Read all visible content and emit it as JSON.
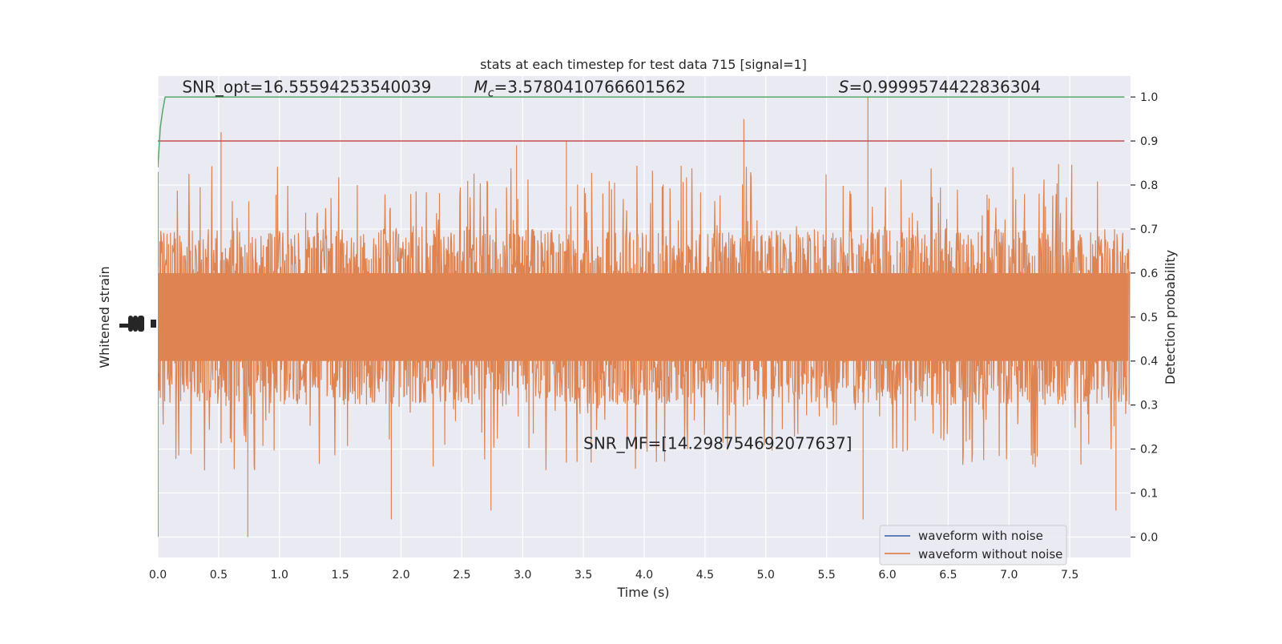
{
  "chart_data": {
    "type": "line",
    "title": "stats at each timestep for test data 715 [signal=1]",
    "xlabel": "Time (s)",
    "ylabel_left": "Whitened strain",
    "ylabel_right": "Detection probability",
    "xlim": [
      0.0,
      8.0
    ],
    "ylim_right": [
      -0.05,
      1.05
    ],
    "x_ticks": [
      "0.0",
      "0.5",
      "1.0",
      "1.5",
      "2.0",
      "2.5",
      "3.0",
      "3.5",
      "4.0",
      "4.5",
      "5.0",
      "5.5",
      "6.0",
      "6.5",
      "7.0",
      "7.5"
    ],
    "y_ticks_right": [
      "0.0",
      "0.1",
      "0.2",
      "0.3",
      "0.4",
      "0.5",
      "0.6",
      "0.7",
      "0.8",
      "0.9",
      "1.0"
    ],
    "grid": true,
    "legend_position": "lower-right",
    "series": [
      {
        "name": "waveform with noise",
        "color": "#4c72b0",
        "description": "blue trace, fully hidden under the orange trace except a faint sliver near t=0"
      },
      {
        "name": "waveform without noise",
        "color": "#dd8452",
        "band": {
          "core_low": 0.3,
          "core_high": 0.7,
          "peak_max": 1.0,
          "trough_min": 0.0
        },
        "notable_peaks": [
          {
            "x": 0.52,
            "y": 0.92
          },
          {
            "x": 4.82,
            "y": 0.95
          },
          {
            "x": 5.84,
            "y": 1.0
          },
          {
            "x": 3.36,
            "y": 0.9
          },
          {
            "x": 2.95,
            "y": 0.89
          }
        ],
        "notable_troughs": [
          {
            "x": 0.74,
            "y": 0.0
          },
          {
            "x": 1.92,
            "y": 0.04
          },
          {
            "x": 5.8,
            "y": 0.04
          },
          {
            "x": 2.74,
            "y": 0.06
          },
          {
            "x": 7.88,
            "y": 0.06
          }
        ]
      },
      {
        "role": "detection probability",
        "color": "#55a868",
        "x": [
          0.0,
          0.02,
          0.04,
          0.06,
          7.95
        ],
        "y": [
          0.84,
          0.93,
          0.97,
          1.0,
          1.0
        ]
      },
      {
        "role": "threshold",
        "color": "#c44e52",
        "y": 0.9
      }
    ],
    "annotations": [
      {
        "id": "snr_opt",
        "text": "SNR_opt=16.55594253540039",
        "x": 0.2,
        "y": 1.01
      },
      {
        "id": "mc",
        "prefix": "M",
        "sub": "c",
        "rest": "=3.5780410766601562",
        "x": 2.6,
        "y": 1.01
      },
      {
        "id": "s",
        "prefix": "S",
        "rest": "=0.9999574422836304",
        "x": 5.6,
        "y": 1.01
      },
      {
        "id": "snr_mf",
        "text": "SNR_MF=[14.298754692077637]",
        "x": 3.5,
        "y": 0.2
      }
    ]
  }
}
